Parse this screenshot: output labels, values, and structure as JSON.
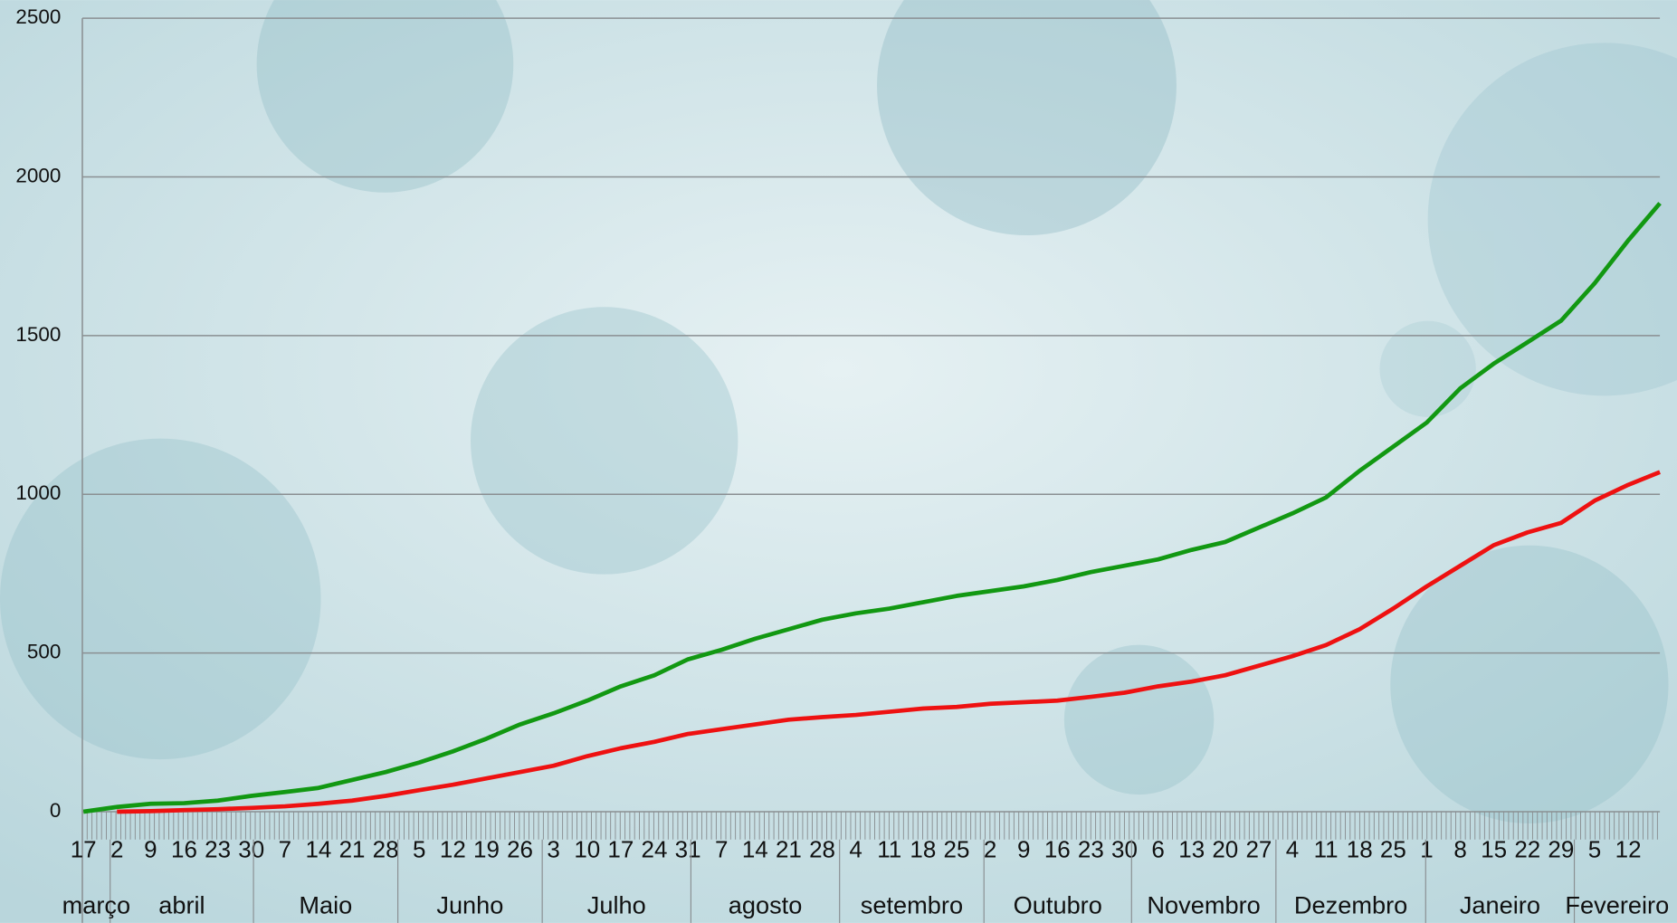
{
  "chart_data": {
    "type": "line",
    "categories": [
      "17",
      "2",
      "9",
      "16",
      "23",
      "30",
      "7",
      "14",
      "21",
      "28",
      "5",
      "12",
      "19",
      "26",
      "3",
      "10",
      "17",
      "24",
      "31",
      "7",
      "14",
      "21",
      "28",
      "4",
      "11",
      "18",
      "25",
      "2",
      "9",
      "16",
      "23",
      "30",
      "6",
      "13",
      "20",
      "27",
      "4",
      "11",
      "18",
      "25",
      "1",
      "8",
      "15",
      "22",
      "29",
      "5",
      "12",
      null
    ],
    "months": [
      "março",
      "abril",
      "Maio",
      "Junho",
      "Julho",
      "agosto",
      "setembro",
      "Outubro",
      "Novembro",
      "Dezembro",
      "Janeiro",
      "Fevereiro"
    ],
    "series": [
      {
        "color": "#129812",
        "values": [
          0,
          15,
          25,
          27,
          35,
          50,
          62,
          75,
          100,
          125,
          155,
          190,
          230,
          275,
          310,
          350,
          395,
          430,
          480,
          510,
          545,
          575,
          605,
          625,
          640,
          660,
          680,
          695,
          710,
          730,
          755,
          775,
          795,
          825,
          850,
          895,
          940,
          990,
          1074,
          1150,
          1226,
          1334,
          1412,
          1479,
          1547,
          1665,
          1800,
          1917
        ]
      },
      {
        "color": "#ee1111",
        "values": [
          null,
          0,
          2,
          5,
          8,
          12,
          17,
          25,
          35,
          50,
          68,
          85,
          105,
          125,
          145,
          175,
          200,
          220,
          245,
          260,
          275,
          290,
          298,
          305,
          315,
          325,
          330,
          340,
          345,
          350,
          362,
          375,
          395,
          410,
          430,
          460,
          490,
          525,
          575,
          640,
          710,
          775,
          840,
          880,
          910,
          980,
          1030,
          1070
        ]
      }
    ],
    "ylim": [
      0,
      2500
    ],
    "yticks": [
      0,
      500,
      1000,
      1500,
      2000,
      2500
    ],
    "grid": true
  }
}
